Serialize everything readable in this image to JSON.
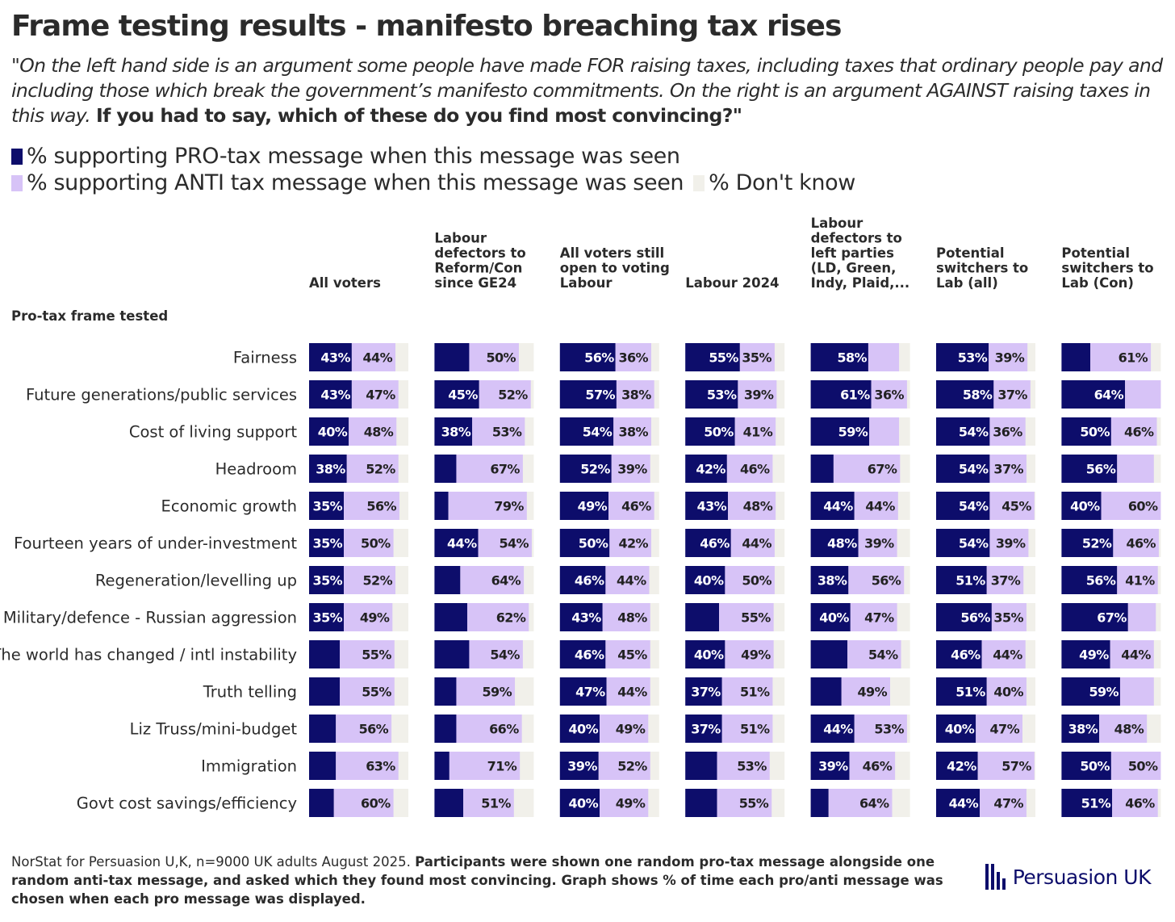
{
  "title": "Frame testing results - manifesto breaching tax rises",
  "subtitle": {
    "italic": "\"On the left hand side is an argument some people have made FOR raising taxes, including taxes that ordinary people pay and including those which break the government’s manifesto commitments. On the right is an argument AGAINST raising taxes in this way.",
    "bold": "If you had to say, which of these do you find most convincing?\""
  },
  "legend": {
    "pro": "% supporting PRO-tax message when this message was seen",
    "anti": "% supporting ANTI tax message when this message was seen",
    "dk": "% Don't know"
  },
  "colors": {
    "pro": "#0d0d6b",
    "anti": "#d7c3f7",
    "dk": "#f1f0ea",
    "pro_label": "#ffffff",
    "anti_label": "#222222"
  },
  "footnote": {
    "plain": "NorStat for Persuasion U,K, n=9000 UK adults August 2025.",
    "bold": "Participants were shown one random pro-tax message alongside one random anti-tax message, and asked which they found most convincing. Graph shows % of time each pro/anti message was chosen when each pro message was displayed."
  },
  "logo": {
    "text": "Persuasion UK",
    "icon": "persuasion-bars-icon"
  },
  "chart_data": {
    "type": "bar",
    "orientation": "horizontal",
    "stacked": true,
    "normalized": true,
    "row_header": "Pro-tax frame tested",
    "categories": [
      "Fairness",
      "Future generations/public services",
      "Cost of living support",
      "Headroom",
      "Economic growth",
      "Fourteen years of under-investment",
      "Regeneration/levelling up",
      "Military/defence - Russian aggression",
      "The world has changed / intl instability",
      "Truth telling",
      "Liz Truss/mini-budget",
      "Immigration",
      "Govt cost savings/efficiency"
    ],
    "panels": [
      {
        "name": "All voters",
        "header_lines": [
          "All voters"
        ],
        "pro": [
          43,
          43,
          40,
          38,
          35,
          35,
          35,
          35,
          31,
          31,
          27,
          27,
          25
        ],
        "anti": [
          44,
          47,
          48,
          52,
          56,
          50,
          52,
          49,
          55,
          55,
          56,
          63,
          60
        ],
        "pro_labels": [
          "43%",
          "43%",
          "40%",
          "38%",
          "35%",
          "35%",
          "35%",
          "35%",
          "",
          "",
          "",
          "",
          ""
        ],
        "anti_labels": [
          "44%",
          "47%",
          "48%",
          "52%",
          "56%",
          "50%",
          "52%",
          "49%",
          "55%",
          "55%",
          "56%",
          "63%",
          "60%"
        ]
      },
      {
        "name": "Labour defectors to Reform/Con since GE24",
        "header_lines": [
          "Labour",
          "defectors to",
          "Reform/Con",
          "since GE24"
        ],
        "pro": [
          35,
          45,
          38,
          22,
          14,
          44,
          26,
          33,
          35,
          22,
          22,
          15,
          29
        ],
        "anti": [
          50,
          52,
          53,
          67,
          79,
          54,
          64,
          62,
          54,
          59,
          66,
          71,
          51
        ],
        "pro_labels": [
          "",
          "45%",
          "38%",
          "",
          "",
          "44%",
          "",
          "",
          "",
          "",
          "",
          "",
          ""
        ],
        "anti_labels": [
          "50%",
          "52%",
          "53%",
          "67%",
          "79%",
          "54%",
          "64%",
          "62%",
          "54%",
          "59%",
          "66%",
          "71%",
          "51%"
        ]
      },
      {
        "name": "All voters still open to voting Labour",
        "header_lines": [
          "All voters still",
          "open to voting",
          "Labour"
        ],
        "pro": [
          56,
          57,
          54,
          52,
          49,
          50,
          46,
          43,
          46,
          47,
          40,
          39,
          40
        ],
        "anti": [
          36,
          38,
          38,
          39,
          46,
          42,
          44,
          48,
          45,
          44,
          49,
          52,
          49
        ],
        "pro_labels": [
          "56%",
          "57%",
          "54%",
          "52%",
          "49%",
          "50%",
          "46%",
          "43%",
          "46%",
          "47%",
          "40%",
          "39%",
          "40%"
        ],
        "anti_labels": [
          "36%",
          "38%",
          "38%",
          "39%",
          "46%",
          "42%",
          "44%",
          "48%",
          "45%",
          "44%",
          "49%",
          "52%",
          "49%"
        ]
      },
      {
        "name": "Labour 2024",
        "header_lines": [
          "Labour 2024"
        ],
        "pro": [
          55,
          53,
          50,
          42,
          43,
          46,
          40,
          34,
          40,
          37,
          37,
          32,
          32
        ],
        "anti": [
          35,
          39,
          41,
          46,
          48,
          44,
          50,
          55,
          49,
          51,
          51,
          53,
          55
        ],
        "pro_labels": [
          "55%",
          "53%",
          "50%",
          "42%",
          "43%",
          "46%",
          "40%",
          "",
          "40%",
          "37%",
          "37%",
          "",
          ""
        ],
        "anti_labels": [
          "35%",
          "39%",
          "41%",
          "46%",
          "48%",
          "44%",
          "50%",
          "55%",
          "49%",
          "51%",
          "51%",
          "53%",
          "55%"
        ]
      },
      {
        "name": "Labour defectors to left parties (LD, Green, Indy, Plaid,...",
        "header_lines": [
          "Labour",
          "defectors to",
          "left parties",
          "(LD, Green,",
          "Indy, Plaid,..."
        ],
        "pro": [
          58,
          61,
          59,
          23,
          44,
          48,
          38,
          40,
          37,
          31,
          44,
          39,
          18
        ],
        "anti": [
          31,
          36,
          30,
          67,
          44,
          39,
          56,
          47,
          54,
          49,
          53,
          46,
          64
        ],
        "pro_labels": [
          "58%",
          "61%",
          "59%",
          "",
          "44%",
          "48%",
          "38%",
          "40%",
          "",
          "",
          "44%",
          "39%",
          ""
        ],
        "anti_labels": [
          "",
          "36%",
          "",
          "67%",
          "44%",
          "39%",
          "56%",
          "47%",
          "54%",
          "49%",
          "53%",
          "46%",
          "64%"
        ]
      },
      {
        "name": "Potential switchers to Lab (all)",
        "header_lines": [
          "Potential",
          "switchers to",
          "Lab (all)"
        ],
        "pro": [
          53,
          58,
          54,
          54,
          54,
          54,
          51,
          56,
          46,
          51,
          40,
          42,
          44
        ],
        "anti": [
          39,
          37,
          36,
          37,
          45,
          39,
          37,
          35,
          44,
          40,
          47,
          57,
          47
        ],
        "pro_labels": [
          "53%",
          "58%",
          "54%",
          "54%",
          "54%",
          "54%",
          "51%",
          "56%",
          "46%",
          "51%",
          "40%",
          "42%",
          "44%"
        ],
        "anti_labels": [
          "39%",
          "37%",
          "36%",
          "37%",
          "45%",
          "39%",
          "37%",
          "35%",
          "44%",
          "40%",
          "47%",
          "57%",
          "47%"
        ]
      },
      {
        "name": "Potential switchers to Lab (Con)",
        "header_lines": [
          "Potential",
          "switchers to",
          "Lab (Con)"
        ],
        "pro": [
          29,
          64,
          50,
          56,
          40,
          52,
          56,
          67,
          49,
          59,
          38,
          50,
          51
        ],
        "anti": [
          61,
          36,
          46,
          37,
          60,
          46,
          41,
          28,
          44,
          34,
          48,
          50,
          46
        ],
        "pro_labels": [
          "",
          "64%",
          "50%",
          "56%",
          "40%",
          "52%",
          "56%",
          "67%",
          "49%",
          "59%",
          "38%",
          "50%",
          "51%"
        ],
        "anti_labels": [
          "61%",
          "",
          "46%",
          "",
          "60%",
          "46%",
          "41%",
          "",
          "44%",
          "",
          "48%",
          "50%",
          "46%"
        ]
      }
    ]
  }
}
